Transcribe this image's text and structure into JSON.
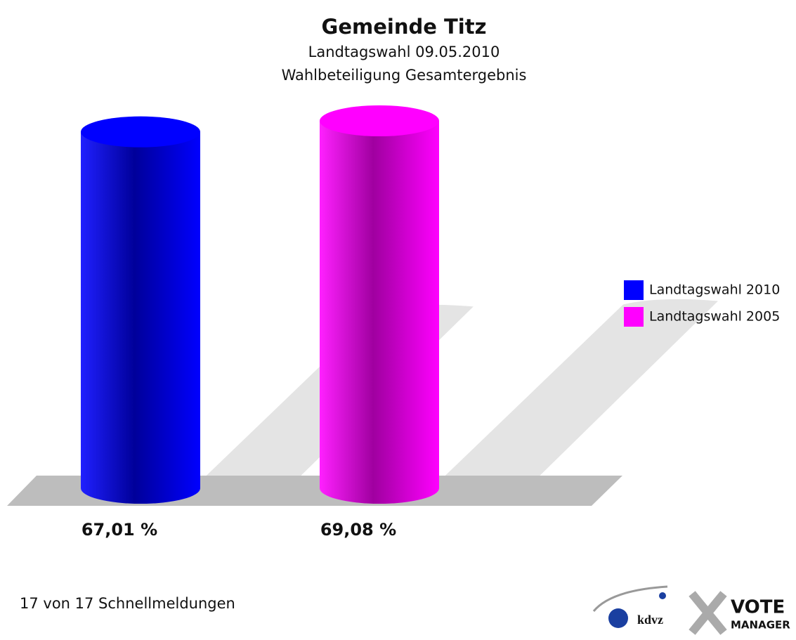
{
  "chart_data": {
    "type": "bar",
    "title": "Gemeinde Titz",
    "subtitle": [
      "Landtagswahl 09.05.2010",
      "Wahlbeteiligung Gesamtergebnis"
    ],
    "series": [
      {
        "name": "Landtagswahl 2010",
        "color": "#0000ff",
        "values": [
          67.01
        ],
        "value_labels": [
          "67,01 %"
        ]
      },
      {
        "name": "Landtagswahl 2005",
        "color": "#ff00ff",
        "values": [
          69.08
        ],
        "value_labels": [
          "69,08 %"
        ]
      }
    ],
    "footer": "17 von 17 Schnellmeldungen",
    "logo": {
      "brand": "kdvz",
      "product": [
        "VOTE",
        "MANAGER"
      ]
    }
  }
}
